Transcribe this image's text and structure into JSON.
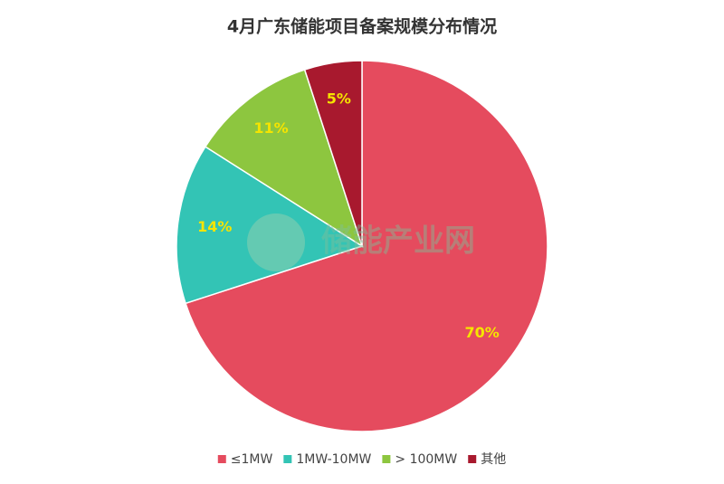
{
  "chart_data": {
    "type": "pie",
    "title": "4月广东储能项目备案规模分布情况",
    "categories": [
      "≤1MW",
      "1MW-10MW",
      "> 100MW",
      "其他"
    ],
    "values": [
      70,
      14,
      11,
      5
    ],
    "value_labels": [
      "70%",
      "14%",
      "11%",
      "5%"
    ],
    "colors": [
      "#e54b5e",
      "#33c4b5",
      "#8dc63f",
      "#a8192e"
    ],
    "legend": "bottom",
    "watermark": "储能产业网"
  }
}
